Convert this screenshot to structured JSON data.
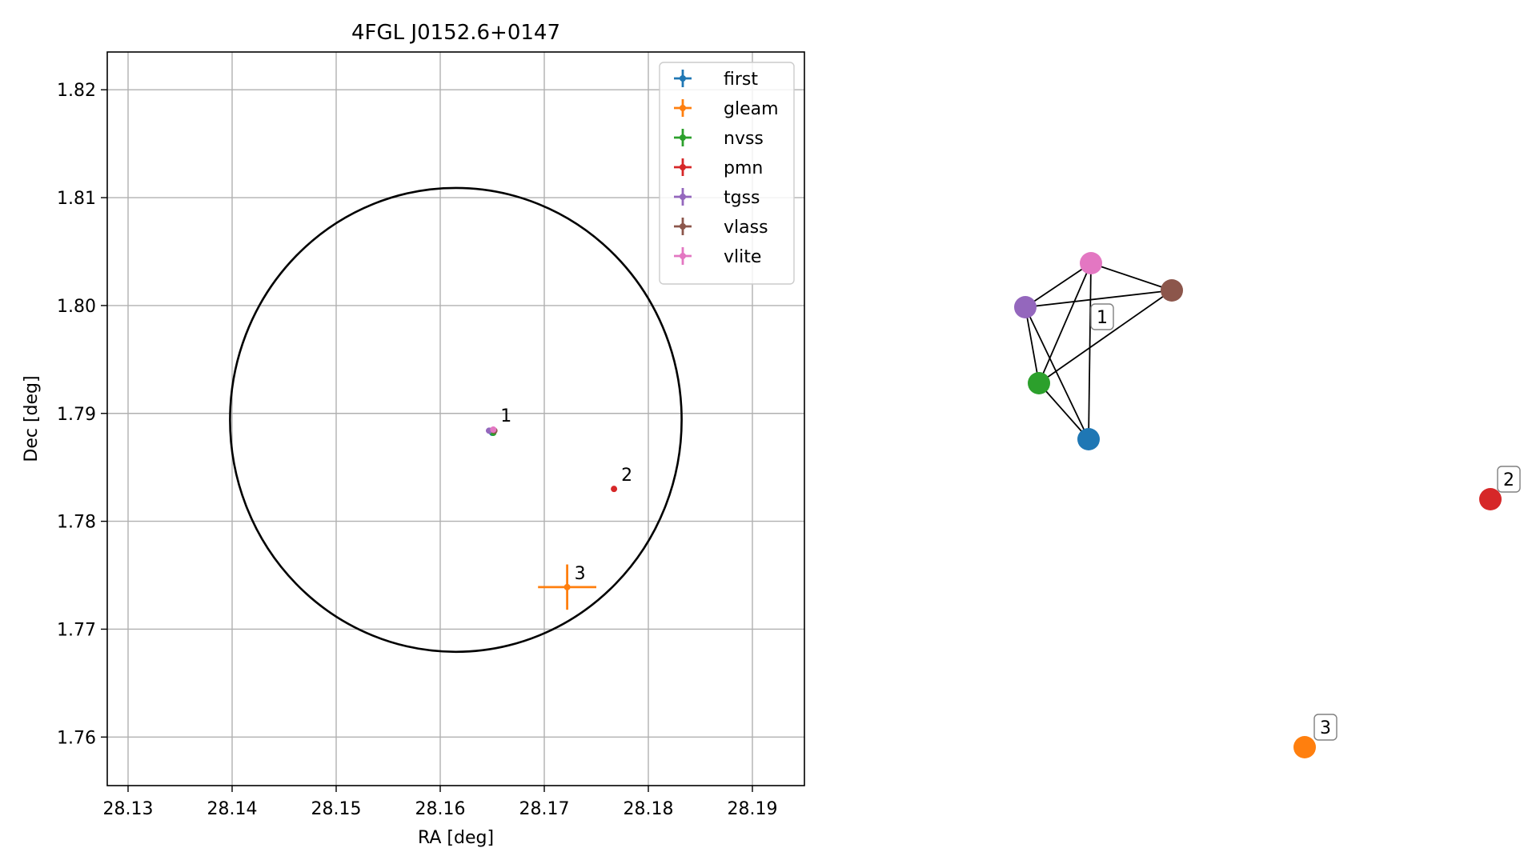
{
  "chart_data": [
    {
      "type": "scatter",
      "title": "4FGL J0152.6+0147",
      "xlabel": "RA [deg]",
      "ylabel": "Dec [deg]",
      "xlim": [
        28.128,
        28.195
      ],
      "ylim": [
        1.7555,
        1.8235
      ],
      "xticks": [
        "28.13",
        "28.14",
        "28.15",
        "28.16",
        "28.17",
        "28.18",
        "28.19"
      ],
      "yticks": [
        "1.76",
        "1.77",
        "1.78",
        "1.79",
        "1.80",
        "1.81",
        "1.82"
      ],
      "grid": true,
      "legend_position": "top-right",
      "error_ellipse": {
        "center": [
          28.1615,
          1.7894
        ],
        "radius_ra": 0.0217,
        "radius_dec": 0.0215,
        "color": "#000000"
      },
      "series": [
        {
          "name": "first",
          "color": "#1f77b4",
          "x": [
            28.165
          ],
          "y": [
            1.7882
          ],
          "xerr": [
            0.0001
          ],
          "yerr": [
            0.0001
          ]
        },
        {
          "name": "gleam",
          "color": "#ff7f0e",
          "x": [
            28.1722
          ],
          "y": [
            1.7739
          ],
          "xerr": [
            0.0028
          ],
          "yerr": [
            0.0021
          ]
        },
        {
          "name": "nvss",
          "color": "#2ca02c",
          "x": [
            28.1651
          ],
          "y": [
            1.7882
          ],
          "xerr": [
            0.0002
          ],
          "yerr": [
            0.0002
          ]
        },
        {
          "name": "pmn",
          "color": "#d62728",
          "x": [
            28.1767
          ],
          "y": [
            1.783
          ],
          "xerr": [
            0.0001
          ],
          "yerr": [
            0.0002
          ]
        },
        {
          "name": "tgss",
          "color": "#9467bd",
          "x": [
            28.1647
          ],
          "y": [
            1.7884
          ],
          "xerr": [
            0.0003
          ],
          "yerr": [
            0.0001
          ]
        },
        {
          "name": "vlass",
          "color": "#8c564b",
          "x": [
            28.1652
          ],
          "y": [
            1.7884
          ],
          "xerr": [
            0.0001
          ],
          "yerr": [
            0.0001
          ]
        },
        {
          "name": "vlite",
          "color": "#e377c2",
          "x": [
            28.1651
          ],
          "y": [
            1.7885
          ],
          "xerr": [
            0.0001
          ],
          "yerr": [
            0.0001
          ]
        }
      ],
      "annotations": [
        {
          "text": "1",
          "x": 28.1651,
          "y": 1.7885
        },
        {
          "text": "2",
          "x": 28.1767,
          "y": 1.783
        },
        {
          "text": "3",
          "x": 28.1722,
          "y": 1.7739
        }
      ]
    },
    {
      "type": "network",
      "nodes": [
        {
          "id": "first",
          "color": "#1f77b4"
        },
        {
          "id": "gleam",
          "color": "#ff7f0e"
        },
        {
          "id": "nvss",
          "color": "#2ca02c"
        },
        {
          "id": "pmn",
          "color": "#d62728"
        },
        {
          "id": "tgss",
          "color": "#9467bd"
        },
        {
          "id": "vlass",
          "color": "#8c564b"
        },
        {
          "id": "vlite",
          "color": "#e377c2"
        }
      ],
      "edges": [
        [
          "vlite",
          "vlass"
        ],
        [
          "vlite",
          "tgss"
        ],
        [
          "vlite",
          "nvss"
        ],
        [
          "vlite",
          "first"
        ],
        [
          "tgss",
          "vlass"
        ],
        [
          "tgss",
          "nvss"
        ],
        [
          "tgss",
          "first"
        ],
        [
          "vlass",
          "nvss"
        ],
        [
          "nvss",
          "first"
        ]
      ],
      "groups": [
        {
          "label": "1",
          "members": [
            "first",
            "nvss",
            "tgss",
            "vlass",
            "vlite"
          ]
        },
        {
          "label": "2",
          "members": [
            "pmn"
          ]
        },
        {
          "label": "3",
          "members": [
            "gleam"
          ]
        }
      ]
    }
  ]
}
